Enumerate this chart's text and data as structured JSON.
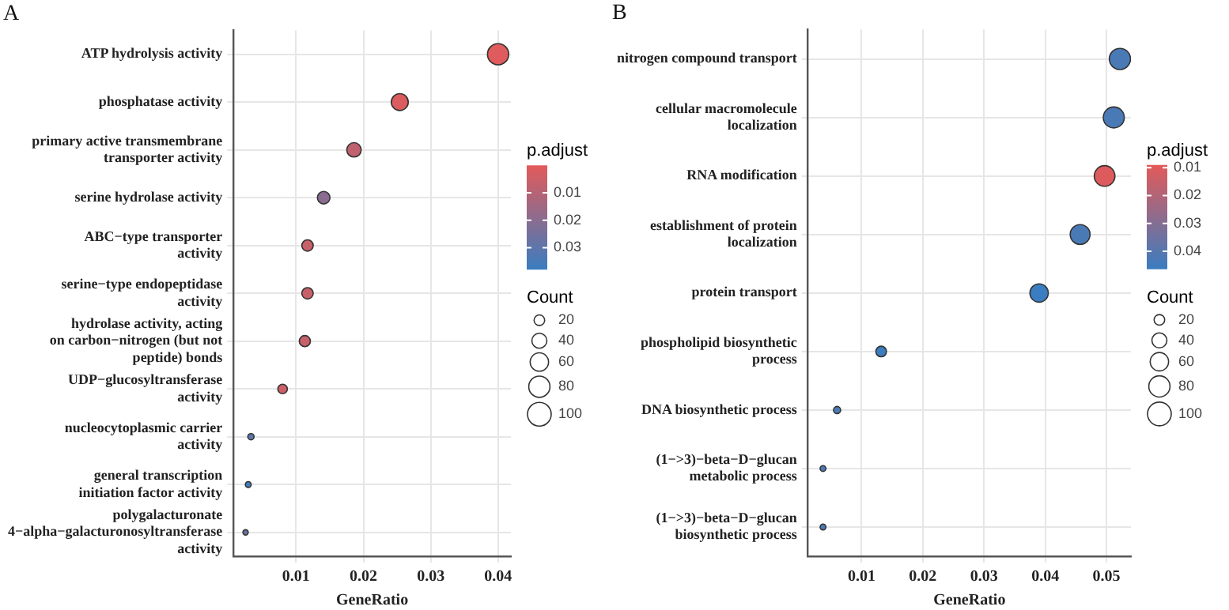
{
  "chart_data": [
    {
      "type": "bubble",
      "title": "A",
      "xlabel": "GeneRatio",
      "orientation": "horizontal",
      "grid": true,
      "clabel": "p.adjust",
      "legend_title": "Count",
      "categories": [
        "ATP hydrolysis activity",
        "phosphatase activity",
        "primary active transmembrane transporter activity",
        "serine hydrolase activity",
        "ABC−type transporter activity",
        "serine−type endopeptidase activity",
        "hydrolase activity, acting on carbon−nitrogen (but not peptide) bonds",
        "UDP−glucosyltransferase activity",
        "nucleocytoplasmic carrier activity",
        "general transcription initiation factor activity",
        "polygalacturonate 4−alpha−galacturonosyltransferase activity"
      ],
      "values": [
        0.04,
        0.0254,
        0.0186,
        0.0141,
        0.0117,
        0.0117,
        0.0113,
        0.008,
        0.0033,
        0.0029,
        0.0025
      ],
      "sizes": [
        80,
        51,
        37,
        28,
        23,
        23,
        22,
        16,
        7,
        6,
        5
      ],
      "cvalues": [
        0.001,
        0.002,
        0.008,
        0.02,
        0.006,
        0.006,
        0.006,
        0.005,
        0.031,
        0.037,
        0.027
      ],
      "size_legend": [
        20,
        40,
        60,
        80,
        100
      ],
      "clim": [
        0.0,
        0.038
      ],
      "cticks": [
        0.01,
        0.02,
        0.03
      ],
      "xlim": [
        0.0007,
        0.0419
      ],
      "xticks": [
        0.01,
        0.02,
        0.03,
        0.04
      ]
    },
    {
      "type": "bubble",
      "title": "B",
      "xlabel": "GeneRatio",
      "orientation": "horizontal",
      "grid": true,
      "clabel": "p.adjust",
      "legend_title": "Count",
      "categories": [
        "nitrogen compound transport",
        "cellular macromolecule localization",
        "RNA modification",
        "establishment of protein localization",
        "protein transport",
        "phospholipid biosynthetic process",
        "DNA biosynthetic process",
        "(1−>3)−beta−D−glucan metabolic process",
        "(1−>3)−beta−D−glucan biosynthetic process"
      ],
      "values": [
        0.0522,
        0.0512,
        0.0497,
        0.0457,
        0.039,
        0.0132,
        0.006,
        0.0037,
        0.0037
      ],
      "sizes": [
        80,
        78,
        76,
        70,
        60,
        20,
        9,
        6,
        6
      ],
      "cvalues": [
        0.043,
        0.043,
        0.01,
        0.043,
        0.0465,
        0.046,
        0.043,
        0.043,
        0.043
      ],
      "size_legend": [
        20,
        40,
        60,
        80,
        100
      ],
      "clim": [
        0.009,
        0.0465
      ],
      "cticks": [
        0.01,
        0.02,
        0.03,
        0.04
      ],
      "xlim": [
        0.00125,
        0.054
      ],
      "xticks": [
        0.01,
        0.02,
        0.03,
        0.04,
        0.05
      ]
    }
  ]
}
